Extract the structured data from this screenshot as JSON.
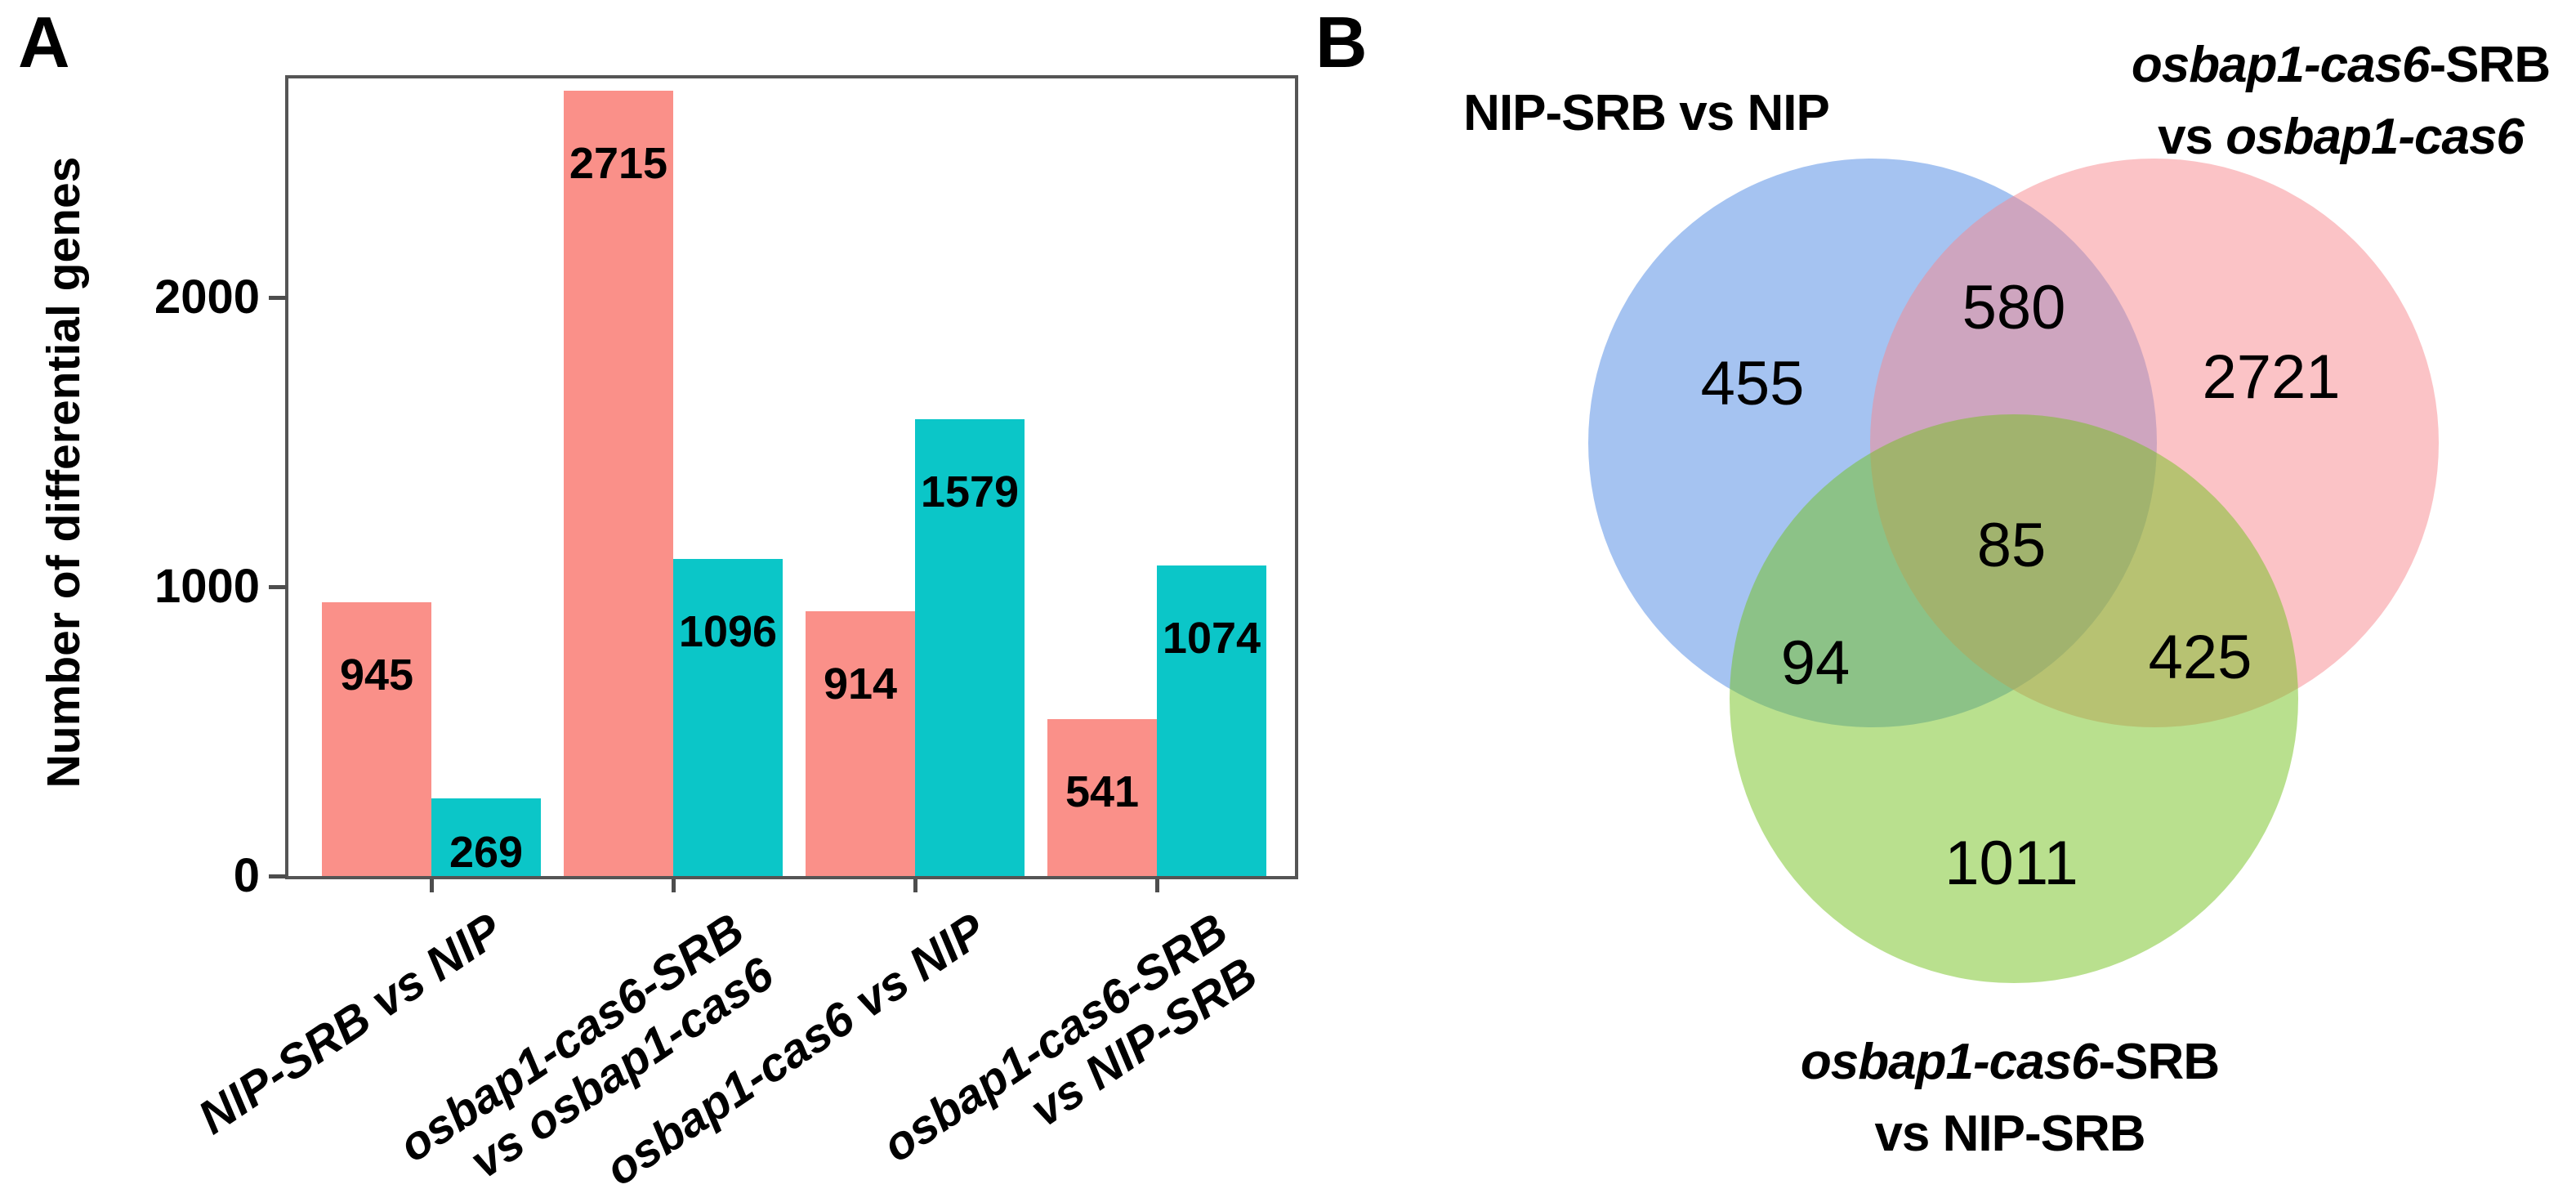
{
  "figure": {
    "panel_a": {
      "letter": "A"
    },
    "panel_b": {
      "letter": "B"
    },
    "accent_colors": {
      "bar_salmon": "#FA9089",
      "bar_cyan": "#0BC6C8",
      "axis_gray": "#4d4d4d",
      "venn_blue_flat": "#A6C3F0",
      "venn_pink_flat": "#FAC2C5",
      "venn_green_flat": "#B8DF8D"
    }
  },
  "chart_data": [
    {
      "type": "bar",
      "panel": "A",
      "title": "",
      "xlabel": "",
      "ylabel": "Number of differential genes",
      "ylim": [
        0,
        2756
      ],
      "yticks": [
        "0",
        "1000",
        "2000"
      ],
      "ytick_values": [
        0,
        1000,
        2000
      ],
      "grid": false,
      "legend": "none",
      "categories": [
        {
          "lines": [
            "NIP-SRB vs NIP"
          ]
        },
        {
          "lines": [
            "osbap1-cas6-SRB",
            "vs osbap1-cas6"
          ]
        },
        {
          "lines": [
            "osbap1-cas6 vs NIP"
          ]
        },
        {
          "lines": [
            "osbap1-cas6-SRB",
            "vs NIP-SRB"
          ]
        }
      ],
      "series": [
        {
          "name": "salmon",
          "color": "#FA9089",
          "values": [
            945,
            2715,
            914,
            541
          ]
        },
        {
          "name": "cyan",
          "color": "#0BC6C8",
          "values": [
            269,
            1096,
            1579,
            1074
          ]
        }
      ],
      "bar_value_labels_shown": true
    },
    {
      "type": "venn3",
      "panel": "B",
      "sets": [
        {
          "id": "blue",
          "fill": "rgba(75,135,227,0.5)",
          "label_text": "NIP-SRB vs NIP",
          "label_lines": [
            [
              {
                "t": "NIP-SRB vs NIP",
                "i": false
              }
            ]
          ]
        },
        {
          "id": "pink",
          "fill": "rgba(247,135,141,0.5)",
          "label_text": "osbap1-cas6-SRB vs osbap1-cas6",
          "label_lines": [
            [
              {
                "t": "osbap1-cas6",
                "i": true
              },
              {
                "t": "-SRB",
                "i": false
              }
            ],
            [
              {
                "t": "vs ",
                "i": false
              },
              {
                "t": "osbap1-cas6",
                "i": true
              }
            ]
          ]
        },
        {
          "id": "green",
          "fill": "rgba(115,193,29,0.5)",
          "label_text": "osbap1-cas6-SRB vs NIP-SRB",
          "label_lines": [
            [
              {
                "t": "osbap1-cas6",
                "i": true
              },
              {
                "t": "-SRB",
                "i": false
              }
            ],
            [
              {
                "t": "vs NIP-SRB",
                "i": false
              }
            ]
          ]
        }
      ],
      "regions": [
        {
          "name": "blue-only",
          "value": 455
        },
        {
          "name": "blue-pink",
          "value": 580
        },
        {
          "name": "pink-only",
          "value": 2721
        },
        {
          "name": "center",
          "value": 85
        },
        {
          "name": "blue-green",
          "value": 94
        },
        {
          "name": "pink-green",
          "value": 425
        },
        {
          "name": "green-only",
          "value": 1011
        }
      ]
    }
  ]
}
